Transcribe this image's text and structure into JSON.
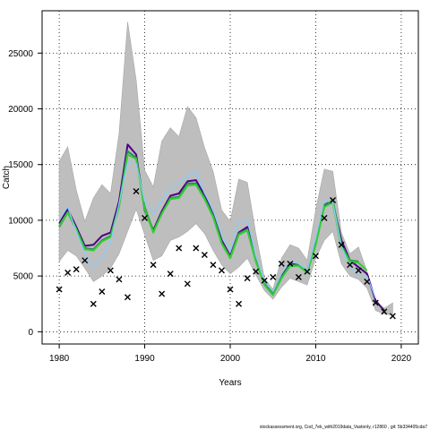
{
  "chart_data": {
    "type": "line",
    "title": "",
    "xlabel": "Years",
    "ylabel": "Catch",
    "xlim": [
      1978,
      2022
    ],
    "ylim": [
      -1100,
      28800
    ],
    "x_ticks": [
      1980,
      1990,
      2000,
      2010,
      2020
    ],
    "y_ticks": [
      0,
      5000,
      10000,
      15000,
      20000,
      25000
    ],
    "grid": true,
    "grid_style": "dotted",
    "legend": "none",
    "footnote": "stockassessment.org, Cod_7ek_with2019data_Vastonly, r12860 , git: 5b334405cda7",
    "colors": {
      "band": "#bebebe",
      "band_edge": "#a6a6a6",
      "observed": "#000000"
    },
    "years": [
      1980,
      1981,
      1982,
      1983,
      1984,
      1985,
      1986,
      1987,
      1988,
      1989,
      1990,
      1991,
      1992,
      1993,
      1994,
      1995,
      1996,
      1997,
      1998,
      1999,
      2000,
      2001,
      2002,
      2003,
      2004,
      2005,
      2006,
      2007,
      2008,
      2009,
      2010,
      2011,
      2012,
      2013,
      2014,
      2015,
      2016,
      2017,
      2018,
      2019
    ],
    "band_upper": [
      15300,
      16600,
      12700,
      9900,
      12000,
      13200,
      12400,
      17800,
      27800,
      22600,
      14500,
      13000,
      17100,
      18300,
      17500,
      20200,
      19200,
      16500,
      14400,
      10900,
      9900,
      13700,
      13400,
      8800,
      4800,
      3800,
      6600,
      7800,
      7500,
      6400,
      11000,
      14600,
      14400,
      8900,
      7000,
      7600,
      5400,
      2700,
      2100,
      2600
    ],
    "band_lower": [
      6300,
      7300,
      6800,
      5700,
      4500,
      5000,
      5700,
      7000,
      9000,
      11000,
      8700,
      6400,
      6800,
      8200,
      8500,
      9000,
      9700,
      8800,
      7300,
      6000,
      5200,
      5800,
      6600,
      5100,
      3700,
      2900,
      4000,
      4800,
      4500,
      4200,
      6600,
      8200,
      9000,
      6100,
      5000,
      4700,
      3900,
      1900,
      1600,
      1500
    ],
    "series": [
      {
        "color": "#4b0082",
        "values": [
          9700,
          11000,
          9400,
          7700,
          7800,
          8600,
          8900,
          11700,
          16800,
          15900,
          10900,
          9100,
          10800,
          12200,
          12400,
          13500,
          13600,
          12200,
          10500,
          8200,
          6800,
          8900,
          9400,
          6600,
          4400,
          3500,
          5100,
          6100,
          6000,
          5400,
          8100,
          11300,
          11600,
          8200,
          6400,
          5800,
          5200,
          2800,
          1900,
          null
        ]
      },
      {
        "color": "#2e8b57",
        "values": [
          9400,
          10700,
          9200,
          7500,
          7400,
          8200,
          8600,
          11300,
          16200,
          15600,
          11200,
          9000,
          10600,
          12000,
          12100,
          13300,
          13300,
          12000,
          10400,
          8000,
          6700,
          8800,
          9200,
          6400,
          4300,
          3400,
          4900,
          6000,
          6000,
          5300,
          7900,
          11400,
          11800,
          7800,
          6400,
          6300,
          null,
          null,
          null,
          null
        ]
      },
      {
        "color": "#32cd32",
        "values": [
          9500,
          10700,
          9200,
          7400,
          7300,
          8100,
          8500,
          11200,
          15900,
          15500,
          11000,
          8900,
          10600,
          11900,
          12000,
          13100,
          13200,
          11900,
          10300,
          7900,
          6600,
          8700,
          9100,
          6300,
          4200,
          3300,
          4800,
          5900,
          5900,
          5300,
          7800,
          11200,
          11600,
          7600,
          6300,
          6200,
          5500,
          null,
          null,
          null
        ]
      },
      {
        "color": "#87cefa",
        "values": [
          10100,
          11200,
          9000,
          7000,
          5800,
          6700,
          8000,
          11500,
          15200,
          15100,
          11700,
          10500,
          11800,
          12800,
          13300,
          13900,
          14400,
          12400,
          11000,
          8700,
          7300,
          9800,
          10000,
          6800,
          4500,
          3600,
          5200,
          6300,
          6100,
          5500,
          8400,
          11800,
          11600,
          7700,
          5800,
          5100,
          5000,
          3000,
          null,
          null
        ]
      }
    ],
    "observed": {
      "x": [
        1980,
        1981,
        1982,
        1983,
        1984,
        1985,
        1986,
        1987,
        1988,
        1989,
        1990,
        1991,
        1992,
        1993,
        1994,
        1995,
        1996,
        1997,
        1998,
        1999,
        2000,
        2001,
        2002,
        2003,
        2004,
        2005,
        2006,
        2007,
        2008,
        2009,
        2010,
        2011,
        2012,
        2013,
        2014,
        2015,
        2016,
        2017,
        2018,
        2019
      ],
      "y": [
        3800,
        5300,
        5600,
        6400,
        2500,
        3600,
        5500,
        4700,
        3100,
        12600,
        10200,
        6000,
        3400,
        5200,
        7500,
        4300,
        7500,
        6900,
        6000,
        5500,
        3800,
        2500,
        4800,
        5400,
        4600,
        4900,
        6100,
        6100,
        4900,
        5400,
        6800,
        10200,
        11800,
        7800,
        6000,
        5500,
        4500,
        2600,
        1800,
        1400
      ]
    }
  }
}
